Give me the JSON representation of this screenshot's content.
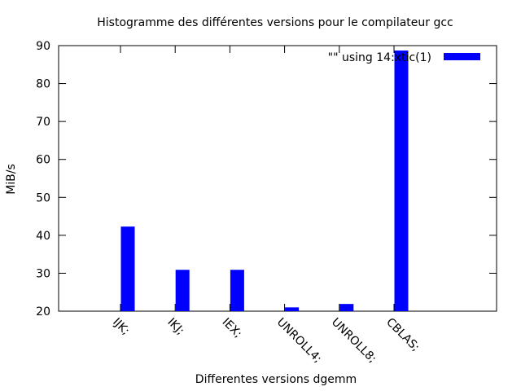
{
  "chart_data": {
    "type": "bar",
    "title": "Histogramme des différentes versions pour le compilateur gcc",
    "xlabel": "Differentes versions dgemm",
    "ylabel": "MiB/s",
    "ylim": [
      20,
      90
    ],
    "yticks": [
      20,
      30,
      40,
      50,
      60,
      70,
      80,
      90
    ],
    "categories": [
      "IJK;",
      "IKJ;",
      "IEX;",
      "UNROLL4;",
      "UNROLL8;",
      "CBLAS;"
    ],
    "series": [
      {
        "name": "\"\" using 14:xtic(1)",
        "color": "#0000ff",
        "values": [
          42.3,
          30.9,
          30.9,
          21.0,
          21.9,
          88.7
        ]
      }
    ],
    "legend": "top-right",
    "grid": false
  }
}
